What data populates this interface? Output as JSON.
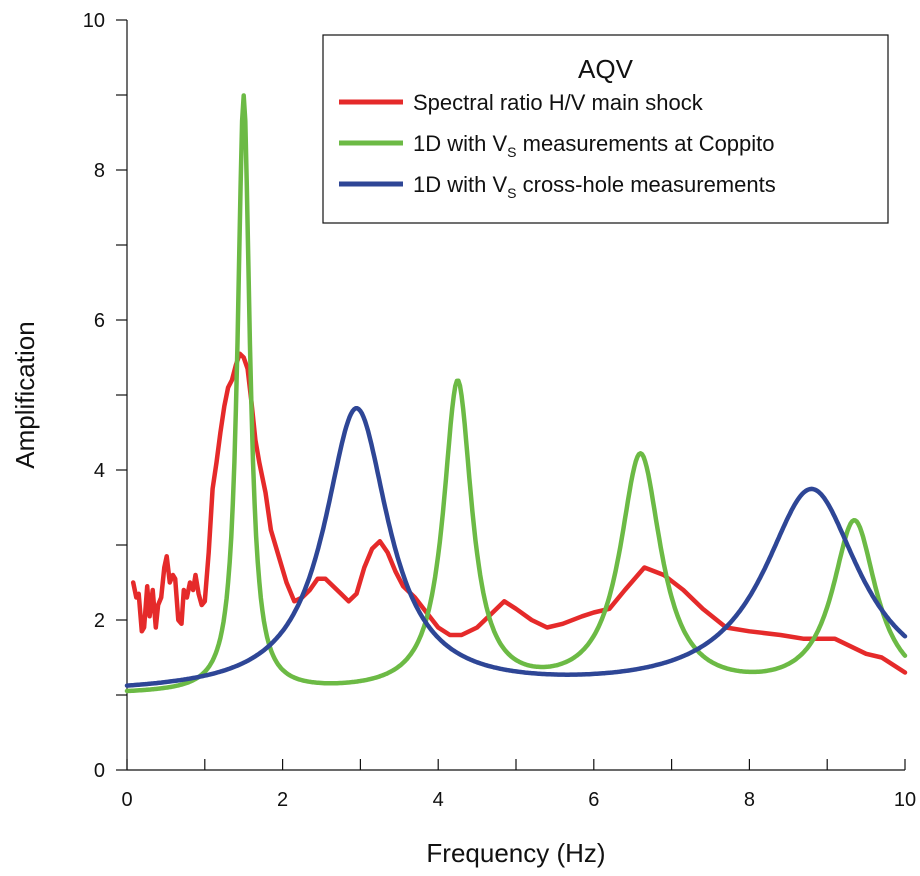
{
  "chart_data": {
    "type": "line",
    "xlabel": "Frequency (Hz)",
    "ylabel": "Amplification",
    "xlim": [
      0,
      10
    ],
    "ylim": [
      0,
      10
    ],
    "x_ticks": [
      "0",
      "2",
      "4",
      "6",
      "8",
      "10"
    ],
    "y_ticks": [
      "0",
      "2",
      "4",
      "6",
      "8",
      "10"
    ],
    "grid": false,
    "legend": {
      "title": "AQV",
      "placement": "top-right",
      "entries": [
        {
          "pre": "Spectral ratio H/V main shock",
          "sub": "",
          "post": ""
        },
        {
          "pre": "1D with V",
          "sub": "S",
          "post": " measurements at Coppito"
        },
        {
          "pre": "1D with V",
          "sub": "S",
          "post": " cross-hole measurements"
        }
      ]
    },
    "series": [
      {
        "color": "#e52a2a",
        "x": [
          0.08,
          0.12,
          0.15,
          0.19,
          0.22,
          0.26,
          0.29,
          0.33,
          0.37,
          0.4,
          0.44,
          0.48,
          0.51,
          0.55,
          0.59,
          0.62,
          0.66,
          0.7,
          0.73,
          0.77,
          0.81,
          0.85,
          0.88,
          0.92,
          0.96,
          1.0,
          1.05,
          1.1,
          1.15,
          1.2,
          1.25,
          1.3,
          1.35,
          1.4,
          1.45,
          1.5,
          1.55,
          1.6,
          1.65,
          1.7,
          1.78,
          1.85,
          1.95,
          2.05,
          2.15,
          2.25,
          2.35,
          2.45,
          2.55,
          2.65,
          2.75,
          2.85,
          2.95,
          3.05,
          3.15,
          3.25,
          3.35,
          3.45,
          3.55,
          3.7,
          3.85,
          4.0,
          4.15,
          4.3,
          4.5,
          4.7,
          4.85,
          5.0,
          5.2,
          5.4,
          5.6,
          5.85,
          6.0,
          6.2,
          6.4,
          6.65,
          6.9,
          7.15,
          7.4,
          7.7,
          8.0,
          8.4,
          8.7,
          9.1,
          9.5,
          9.7,
          10.0
        ],
        "values": [
          2.5,
          2.3,
          2.35,
          1.85,
          1.9,
          2.45,
          2.05,
          2.4,
          1.9,
          2.2,
          2.3,
          2.7,
          2.85,
          2.5,
          2.6,
          2.55,
          2.0,
          1.95,
          2.4,
          2.3,
          2.5,
          2.4,
          2.6,
          2.35,
          2.2,
          2.25,
          2.9,
          3.75,
          4.1,
          4.5,
          4.85,
          5.1,
          5.2,
          5.4,
          5.55,
          5.5,
          5.35,
          4.9,
          4.4,
          4.1,
          3.7,
          3.2,
          2.85,
          2.5,
          2.25,
          2.3,
          2.4,
          2.55,
          2.55,
          2.45,
          2.35,
          2.25,
          2.35,
          2.7,
          2.95,
          3.05,
          2.9,
          2.65,
          2.45,
          2.3,
          2.1,
          1.9,
          1.8,
          1.8,
          1.9,
          2.1,
          2.25,
          2.15,
          2.0,
          1.9,
          1.95,
          2.05,
          2.1,
          2.15,
          2.4,
          2.7,
          2.6,
          2.4,
          2.15,
          1.9,
          1.85,
          1.8,
          1.75,
          1.75,
          1.55,
          1.5,
          1.3
        ]
      },
      {
        "color": "#6cba45",
        "peaks": [
          [
            1.5,
            8.95,
            0.095
          ],
          [
            4.25,
            5.12,
            0.22
          ],
          [
            6.6,
            4.15,
            0.32
          ],
          [
            9.35,
            3.28,
            0.34
          ]
        ],
        "baseline": 1.0
      },
      {
        "color": "#2e4696",
        "peaks": [
          [
            2.95,
            4.78,
            0.5
          ],
          [
            8.8,
            3.72,
            0.75
          ]
        ],
        "baseline": 1.0
      }
    ]
  }
}
